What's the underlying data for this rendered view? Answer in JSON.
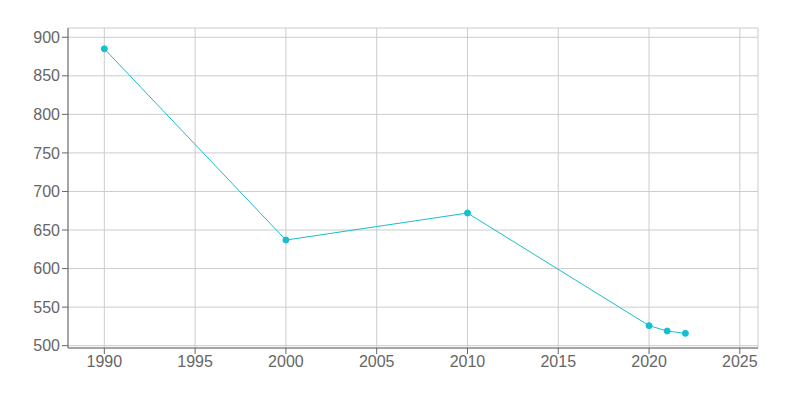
{
  "chart_data": {
    "type": "line",
    "x": [
      1990,
      2000,
      2010,
      2020,
      2021,
      2022
    ],
    "values": [
      885,
      637,
      672,
      526,
      519,
      516
    ],
    "color": "#17BECF",
    "marker": "circle",
    "xlim": [
      1988,
      2026
    ],
    "ylim": [
      497,
      912
    ],
    "xticks": [
      1990,
      1995,
      2000,
      2005,
      2010,
      2015,
      2020,
      2025
    ],
    "yticks": [
      500,
      550,
      600,
      650,
      700,
      750,
      800,
      850,
      900
    ],
    "grid": true
  }
}
